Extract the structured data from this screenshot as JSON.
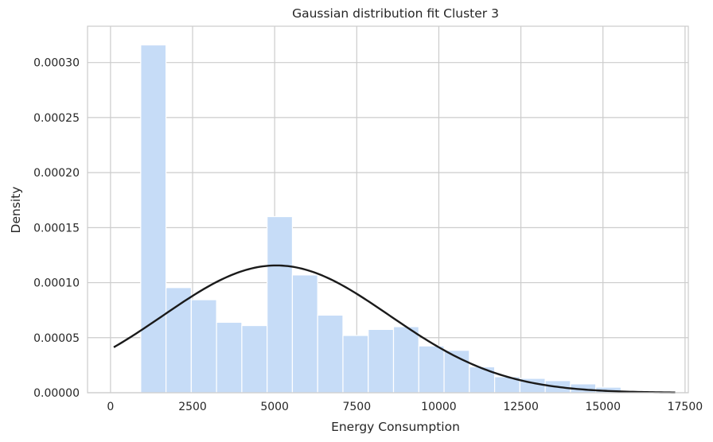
{
  "chart_data": {
    "type": "bar",
    "subtype": "histogram-with-fit",
    "title": "Gaussian distribution fit Cluster 3",
    "xlabel": "Energy Consumption",
    "ylabel": "Density",
    "xlim": [
      -700,
      17600
    ],
    "ylim": [
      0,
      0.000333
    ],
    "grid": true,
    "x_ticks": [
      0,
      2500,
      5000,
      7500,
      10000,
      12500,
      15000,
      17500
    ],
    "x_tick_labels": [
      "0",
      "2500",
      "5000",
      "7500",
      "10000",
      "12500",
      "15000",
      "17500"
    ],
    "y_ticks": [
      0,
      5e-05,
      0.0001,
      0.00015,
      0.0002,
      0.00025,
      0.0003
    ],
    "y_tick_labels": [
      "0.00000",
      "0.00005",
      "0.00010",
      "0.00015",
      "0.00020",
      "0.00025",
      "0.00030"
    ],
    "bins": [
      {
        "x0": 920,
        "x1": 1690,
        "density": 0.000316
      },
      {
        "x0": 1690,
        "x1": 2460,
        "density": 9.55e-05
      },
      {
        "x0": 2460,
        "x1": 3230,
        "density": 8.45e-05
      },
      {
        "x0": 3230,
        "x1": 4000,
        "density": 6.4e-05
      },
      {
        "x0": 4000,
        "x1": 4770,
        "density": 6.1e-05
      },
      {
        "x0": 4770,
        "x1": 5540,
        "density": 0.00016
      },
      {
        "x0": 5540,
        "x1": 6310,
        "density": 0.000107
      },
      {
        "x0": 6310,
        "x1": 7080,
        "density": 7.05e-05
      },
      {
        "x0": 7080,
        "x1": 7850,
        "density": 5.2e-05
      },
      {
        "x0": 7850,
        "x1": 8620,
        "density": 5.75e-05
      },
      {
        "x0": 8620,
        "x1": 9390,
        "density": 6e-05
      },
      {
        "x0": 9390,
        "x1": 10160,
        "density": 4.25e-05
      },
      {
        "x0": 10160,
        "x1": 10930,
        "density": 3.85e-05
      },
      {
        "x0": 10930,
        "x1": 11700,
        "density": 2.35e-05
      },
      {
        "x0": 11700,
        "x1": 12470,
        "density": 1.45e-05
      },
      {
        "x0": 12470,
        "x1": 13240,
        "density": 1.3e-05
      },
      {
        "x0": 13240,
        "x1": 14010,
        "density": 1.1e-05
      },
      {
        "x0": 14010,
        "x1": 14780,
        "density": 8e-06
      },
      {
        "x0": 14780,
        "x1": 15550,
        "density": 5e-06
      }
    ],
    "fit": {
      "distribution": "normal",
      "mean": 5050,
      "std": 3450,
      "x_range": [
        100,
        17200
      ]
    },
    "colors": {
      "bar": "#c6dcf7",
      "fit_line": "#1a1a1a",
      "grid": "#cccccc"
    }
  }
}
